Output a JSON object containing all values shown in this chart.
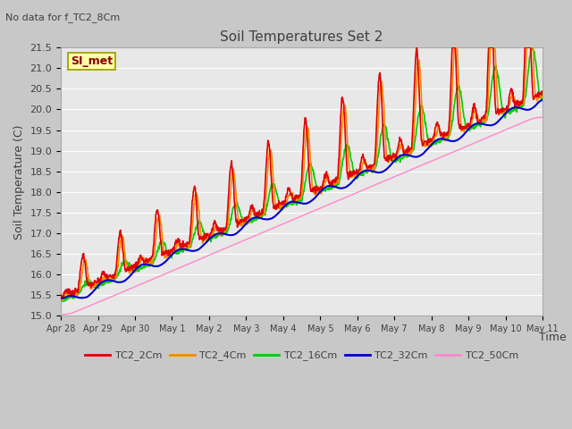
{
  "title": "Soil Temperatures Set 2",
  "subtitle": "No data for f_TC2_8Cm",
  "ylabel": "Soil Temperature (C)",
  "xlabel": "Time",
  "annotation": "SI_met",
  "ylim": [
    15.0,
    21.5
  ],
  "fig_bg": "#c8c8c8",
  "plot_bg": "#e8e8e8",
  "series": {
    "TC2_2Cm": {
      "color": "#dd0000",
      "lw": 1.2
    },
    "TC2_4Cm": {
      "color": "#ff8800",
      "lw": 1.2
    },
    "TC2_16Cm": {
      "color": "#00cc00",
      "lw": 1.2
    },
    "TC2_32Cm": {
      "color": "#0000cc",
      "lw": 1.5
    },
    "TC2_50Cm": {
      "color": "#ff88cc",
      "lw": 1.0
    }
  },
  "xtick_labels": [
    "Apr 28",
    "Apr 29",
    "Apr 30",
    "May 1",
    "May 2",
    "May 3",
    "May 4",
    "May 5",
    "May 6",
    "May 7",
    "May 8",
    "May 9",
    "May 10",
    "May 11"
  ],
  "grid_color": "#ffffff",
  "title_color": "#404040",
  "label_color": "#404040",
  "tick_color": "#404040"
}
